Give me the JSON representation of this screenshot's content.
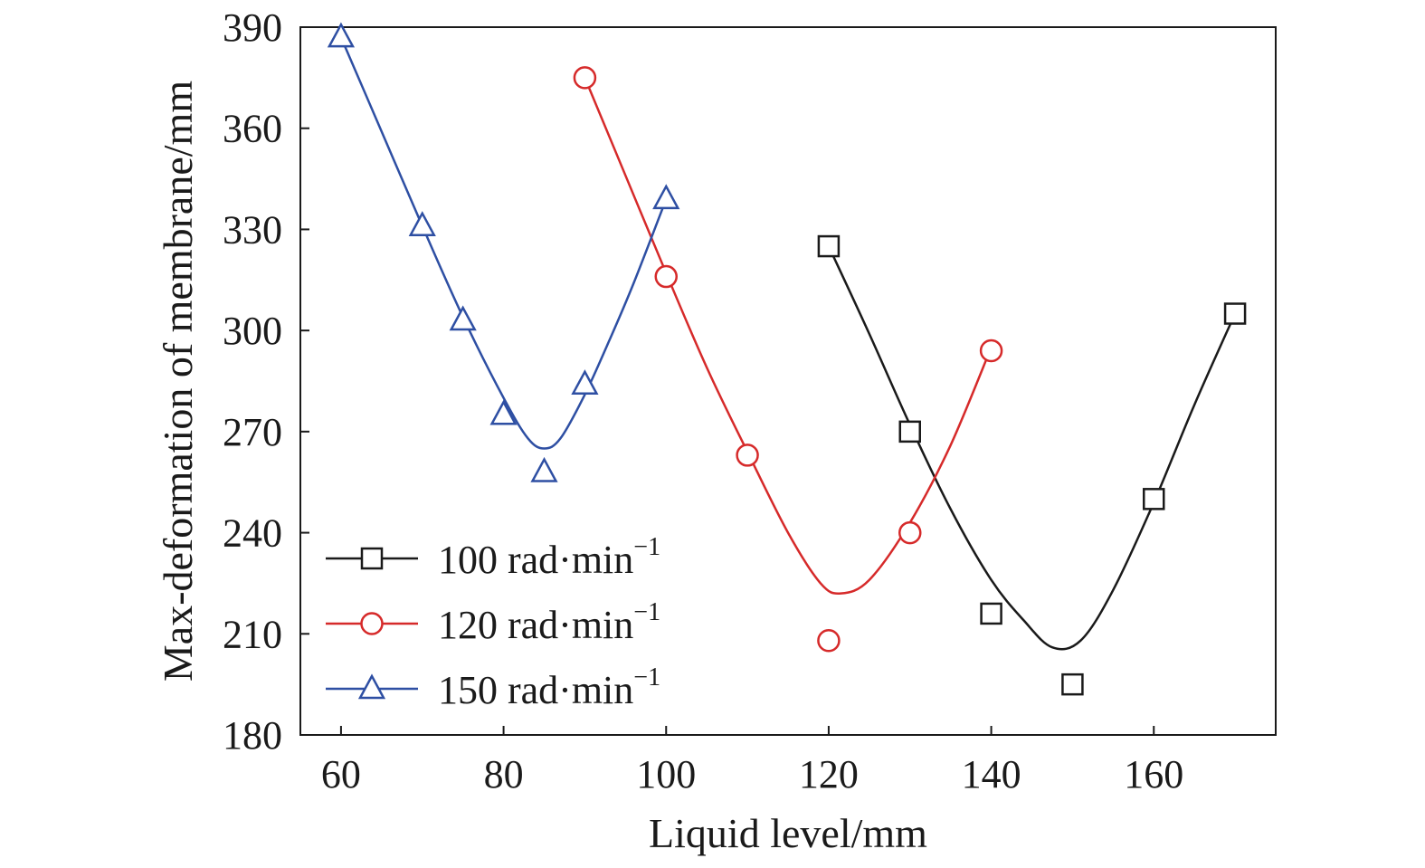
{
  "chart_data": {
    "type": "line",
    "xlabel": "Liquid level/mm",
    "ylabel": "Max-deformation of membrane/mm",
    "xlim": [
      55,
      175
    ],
    "ylim": [
      180,
      390
    ],
    "xticks": [
      60,
      80,
      100,
      120,
      140,
      160
    ],
    "yticks": [
      180,
      210,
      240,
      270,
      300,
      330,
      360,
      390
    ],
    "grid": false,
    "legend_position": "lower-left",
    "series": [
      {
        "name": "100 rad·min",
        "name_exponent": "−1",
        "color": "#1a1a1a",
        "marker": "square",
        "points": [
          [
            120,
            325
          ],
          [
            130,
            270
          ],
          [
            140,
            216
          ],
          [
            150,
            195
          ],
          [
            160,
            250
          ],
          [
            170,
            305
          ]
        ],
        "fit_curve": [
          [
            120,
            325
          ],
          [
            125,
            299
          ],
          [
            130,
            272
          ],
          [
            135,
            247
          ],
          [
            140,
            226
          ],
          [
            144,
            214
          ],
          [
            147.5,
            206
          ],
          [
            151,
            208
          ],
          [
            155,
            223
          ],
          [
            160,
            249
          ],
          [
            165,
            278
          ],
          [
            170,
            305
          ]
        ]
      },
      {
        "name": "120 rad·min",
        "name_exponent": "−1",
        "color": "#d62a2a",
        "marker": "circle",
        "points": [
          [
            90,
            375
          ],
          [
            100,
            316
          ],
          [
            110,
            263
          ],
          [
            120,
            208
          ],
          [
            130,
            240
          ],
          [
            140,
            294
          ]
        ],
        "fit_curve": [
          [
            90,
            375
          ],
          [
            95,
            346
          ],
          [
            100,
            317
          ],
          [
            105,
            289
          ],
          [
            110,
            264
          ],
          [
            115,
            240
          ],
          [
            119,
            225
          ],
          [
            121.5,
            222
          ],
          [
            125,
            226
          ],
          [
            130,
            243
          ],
          [
            135,
            266
          ],
          [
            140,
            295
          ]
        ]
      },
      {
        "name": "150 rad·min",
        "name_exponent": "−1",
        "color": "#2e4fa3",
        "marker": "triangle",
        "points": [
          [
            60,
            387
          ],
          [
            70,
            331
          ],
          [
            75,
            303
          ],
          [
            80,
            275
          ],
          [
            85,
            258
          ],
          [
            90,
            284
          ],
          [
            100,
            339
          ]
        ],
        "fit_curve": [
          [
            60,
            387
          ],
          [
            65,
            359
          ],
          [
            70,
            331
          ],
          [
            75,
            304
          ],
          [
            80,
            280
          ],
          [
            83,
            268
          ],
          [
            85,
            265
          ],
          [
            87,
            268
          ],
          [
            90,
            281
          ],
          [
            93,
            297
          ],
          [
            96,
            314
          ],
          [
            100,
            339
          ]
        ]
      }
    ]
  }
}
